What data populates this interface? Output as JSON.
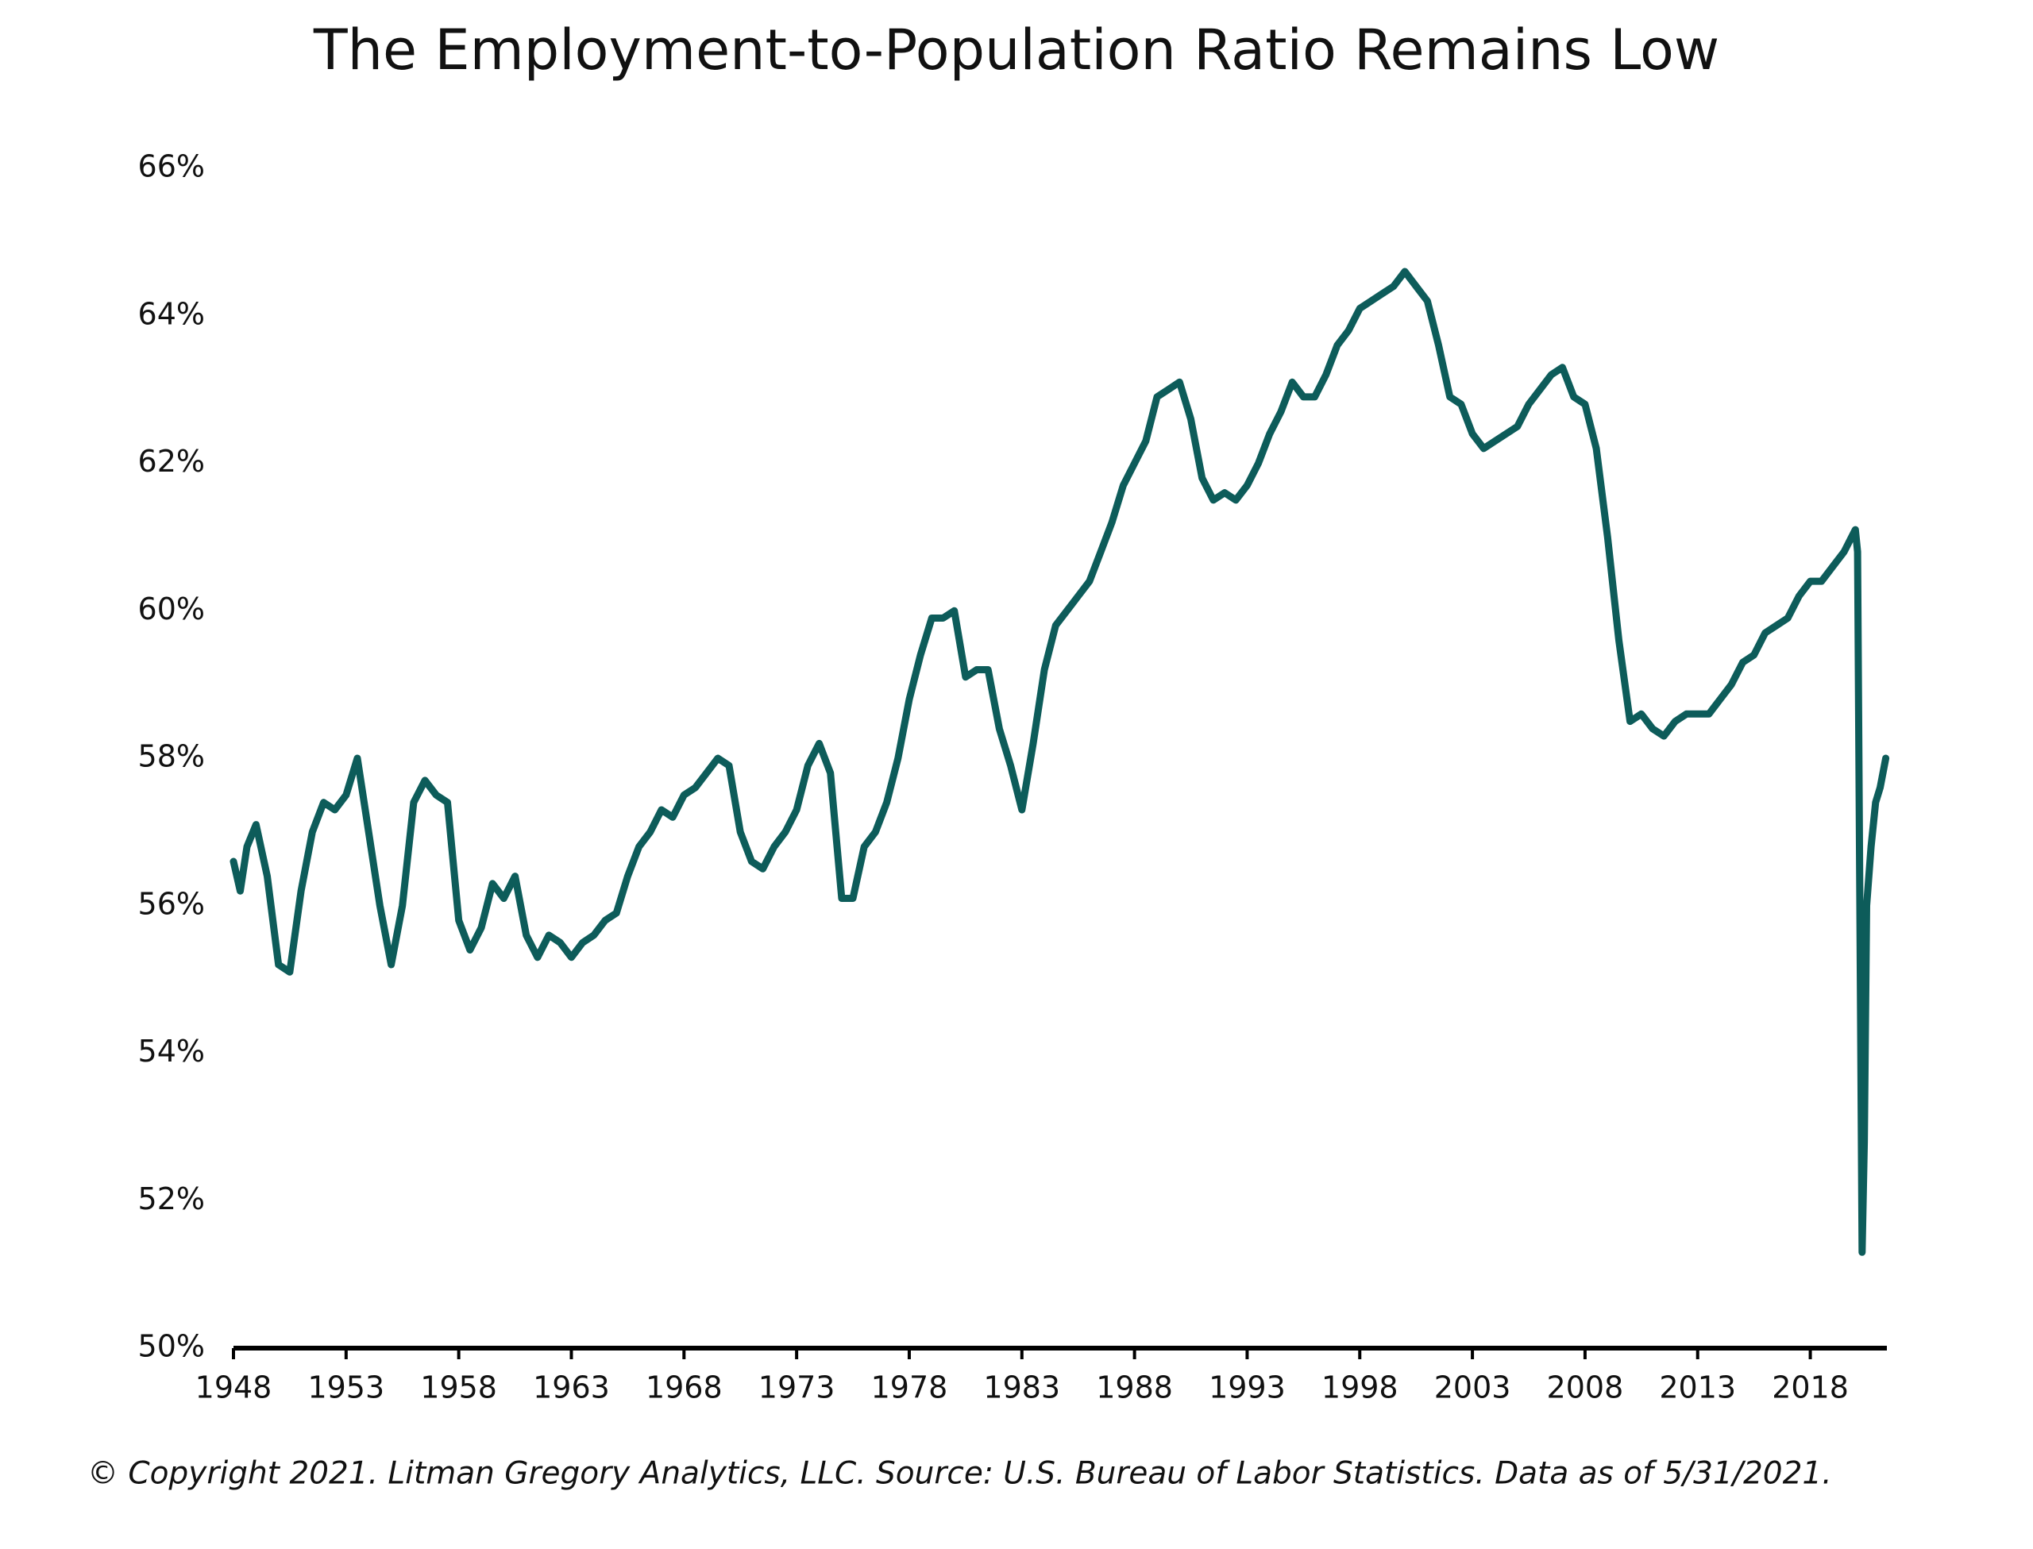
{
  "chart_data": {
    "type": "line",
    "title": "The Employment-to-Population Ratio Remains Low",
    "footnote": "© Copyright 2021. Litman Gregory Analytics, LLC. Source: U.S. Bureau of Labor Statistics. Data as of 5/31/2021.",
    "xlim": [
      1948,
      2021.4
    ],
    "xticks": [
      1948,
      1953,
      1958,
      1963,
      1968,
      1973,
      1978,
      1983,
      1988,
      1993,
      1998,
      2003,
      2008,
      2013,
      2018
    ],
    "ylim": [
      50,
      66
    ],
    "yticks": [
      {
        "value": 50,
        "label": "50%"
      },
      {
        "value": 52,
        "label": "52%"
      },
      {
        "value": 54,
        "label": "54%"
      },
      {
        "value": 56,
        "label": "56%"
      },
      {
        "value": 58,
        "label": "58%"
      },
      {
        "value": 60,
        "label": "60%"
      },
      {
        "value": 62,
        "label": "62%"
      },
      {
        "value": 64,
        "label": "64%"
      },
      {
        "value": 66,
        "label": "66%"
      }
    ],
    "grid": false,
    "series": [
      {
        "color": "#0d5c5a",
        "x": [
          1948,
          1948.3,
          1948.6,
          1949,
          1949.5,
          1950,
          1950.5,
          1951,
          1951.5,
          1952,
          1952.5,
          1953,
          1953.5,
          1954,
          1954.5,
          1955,
          1955.5,
          1956,
          1956.5,
          1957,
          1957.5,
          1958,
          1958.5,
          1959,
          1959.5,
          1960,
          1960.5,
          1961,
          1961.5,
          1962,
          1962.5,
          1963,
          1963.5,
          1964,
          1964.5,
          1965,
          1965.5,
          1966,
          1966.5,
          1967,
          1967.5,
          1968,
          1968.5,
          1969,
          1969.5,
          1970,
          1970.5,
          1971,
          1971.5,
          1972,
          1972.5,
          1973,
          1973.5,
          1974,
          1974.5,
          1975,
          1975.5,
          1976,
          1976.5,
          1977,
          1977.5,
          1978,
          1978.5,
          1979,
          1979.5,
          1980,
          1980.5,
          1981,
          1981.5,
          1982,
          1982.5,
          1983,
          1983.5,
          1984,
          1984.5,
          1985,
          1985.5,
          1986,
          1986.5,
          1987,
          1987.5,
          1988,
          1988.5,
          1989,
          1989.5,
          1990,
          1990.5,
          1991,
          1991.5,
          1992,
          1992.5,
          1993,
          1993.5,
          1994,
          1994.5,
          1995,
          1995.5,
          1996,
          1996.5,
          1997,
          1997.5,
          1998,
          1998.5,
          1999,
          1999.5,
          2000,
          2000.5,
          2001,
          2001.5,
          2002,
          2002.5,
          2003,
          2003.5,
          2004,
          2004.5,
          2005,
          2005.5,
          2006,
          2006.5,
          2007,
          2007.5,
          2008,
          2008.5,
          2009,
          2009.5,
          2010,
          2010.5,
          2011,
          2011.5,
          2012,
          2012.5,
          2013,
          2013.5,
          2014,
          2014.5,
          2015,
          2015.5,
          2016,
          2016.5,
          2017,
          2017.5,
          2018,
          2018.5,
          2019,
          2019.5,
          2020,
          2020.1,
          2020.3,
          2020.4,
          2020.5,
          2020.7,
          2020.9,
          2021.1,
          2021.35
        ],
        "values": [
          56.6,
          56.2,
          56.8,
          57.1,
          56.4,
          55.2,
          55.1,
          56.2,
          57.0,
          57.4,
          57.3,
          57.5,
          58.0,
          57.0,
          56.0,
          55.2,
          56.0,
          57.4,
          57.7,
          57.5,
          57.4,
          55.8,
          55.4,
          55.7,
          56.3,
          56.1,
          56.4,
          55.6,
          55.3,
          55.6,
          55.5,
          55.3,
          55.5,
          55.6,
          55.8,
          55.9,
          56.4,
          56.8,
          57.0,
          57.3,
          57.2,
          57.5,
          57.6,
          57.8,
          58.0,
          57.9,
          57.0,
          56.6,
          56.5,
          56.8,
          57.0,
          57.3,
          57.9,
          58.2,
          57.8,
          56.1,
          56.1,
          56.8,
          57.0,
          57.4,
          58.0,
          58.8,
          59.4,
          59.9,
          59.9,
          60.0,
          59.1,
          59.2,
          59.2,
          58.4,
          57.9,
          57.3,
          58.2,
          59.2,
          59.8,
          60.0,
          60.2,
          60.4,
          60.8,
          61.2,
          61.7,
          62.0,
          62.3,
          62.9,
          63.0,
          63.1,
          62.6,
          61.8,
          61.5,
          61.6,
          61.5,
          61.7,
          62.0,
          62.4,
          62.7,
          63.1,
          62.9,
          62.9,
          63.2,
          63.6,
          63.8,
          64.1,
          64.2,
          64.3,
          64.4,
          64.6,
          64.4,
          64.2,
          63.6,
          62.9,
          62.8,
          62.4,
          62.2,
          62.3,
          62.4,
          62.5,
          62.8,
          63.0,
          63.2,
          63.3,
          62.9,
          62.8,
          62.2,
          61.0,
          59.6,
          58.5,
          58.6,
          58.4,
          58.3,
          58.5,
          58.6,
          58.6,
          58.6,
          58.8,
          59.0,
          59.3,
          59.4,
          59.7,
          59.8,
          59.9,
          60.2,
          60.4,
          60.4,
          60.6,
          60.8,
          61.1,
          60.8,
          51.3,
          52.8,
          56.0,
          56.8,
          57.4,
          57.6,
          58.0
        ]
      }
    ]
  }
}
